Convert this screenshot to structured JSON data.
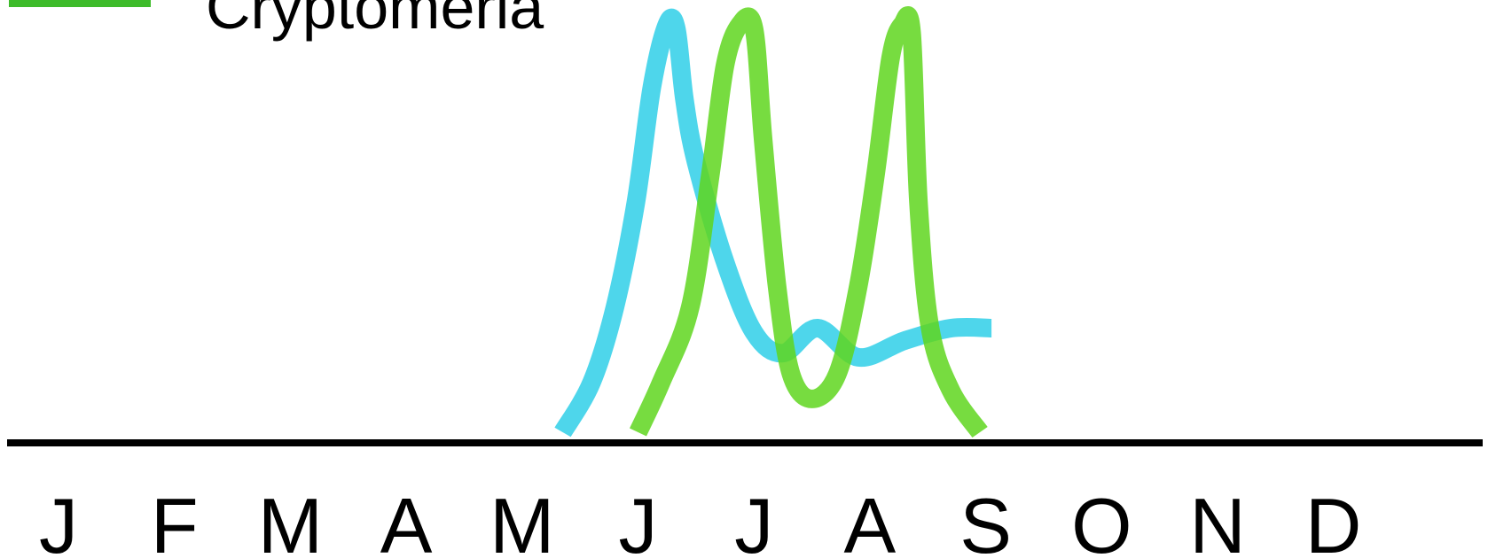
{
  "chart_data": {
    "type": "line",
    "title": "",
    "xlabel": "",
    "ylabel": "",
    "x": [
      "J",
      "F",
      "M",
      "A",
      "M",
      "J",
      "J",
      "A",
      "S",
      "O",
      "N",
      "D"
    ],
    "xlim": [
      1,
      12
    ],
    "ylim": [
      0,
      1
    ],
    "legend": {
      "placement": "top-left",
      "entries": [
        {
          "label": "Cryptomeria",
          "color": "#3dbb2a"
        }
      ]
    },
    "series": [
      {
        "color": "#2fcfe8",
        "points": [
          [
            5.35,
            0.0
          ],
          [
            5.6,
            0.12
          ],
          [
            5.8,
            0.3
          ],
          [
            5.98,
            0.55
          ],
          [
            6.12,
            0.83
          ],
          [
            6.25,
            0.98
          ],
          [
            6.33,
            0.97
          ],
          [
            6.4,
            0.8
          ],
          [
            6.5,
            0.65
          ],
          [
            6.75,
            0.41
          ],
          [
            7.0,
            0.24
          ],
          [
            7.25,
            0.19
          ],
          [
            7.55,
            0.25
          ],
          [
            7.9,
            0.18
          ],
          [
            8.3,
            0.22
          ],
          [
            8.7,
            0.25
          ],
          [
            9.05,
            0.25
          ]
        ]
      },
      {
        "name": "Cryptomeria",
        "color": "#5fd61e",
        "points": [
          [
            6.0,
            0.0
          ],
          [
            6.2,
            0.12
          ],
          [
            6.45,
            0.3
          ],
          [
            6.62,
            0.61
          ],
          [
            6.75,
            0.88
          ],
          [
            6.88,
            0.98
          ],
          [
            7.0,
            0.97
          ],
          [
            7.08,
            0.7
          ],
          [
            7.2,
            0.35
          ],
          [
            7.32,
            0.14
          ],
          [
            7.5,
            0.08
          ],
          [
            7.72,
            0.14
          ],
          [
            7.9,
            0.35
          ],
          [
            8.05,
            0.62
          ],
          [
            8.18,
            0.9
          ],
          [
            8.28,
            0.98
          ],
          [
            8.36,
            0.96
          ],
          [
            8.42,
            0.55
          ],
          [
            8.52,
            0.25
          ],
          [
            8.7,
            0.1
          ],
          [
            8.95,
            0.0
          ]
        ]
      }
    ],
    "grid": false
  }
}
